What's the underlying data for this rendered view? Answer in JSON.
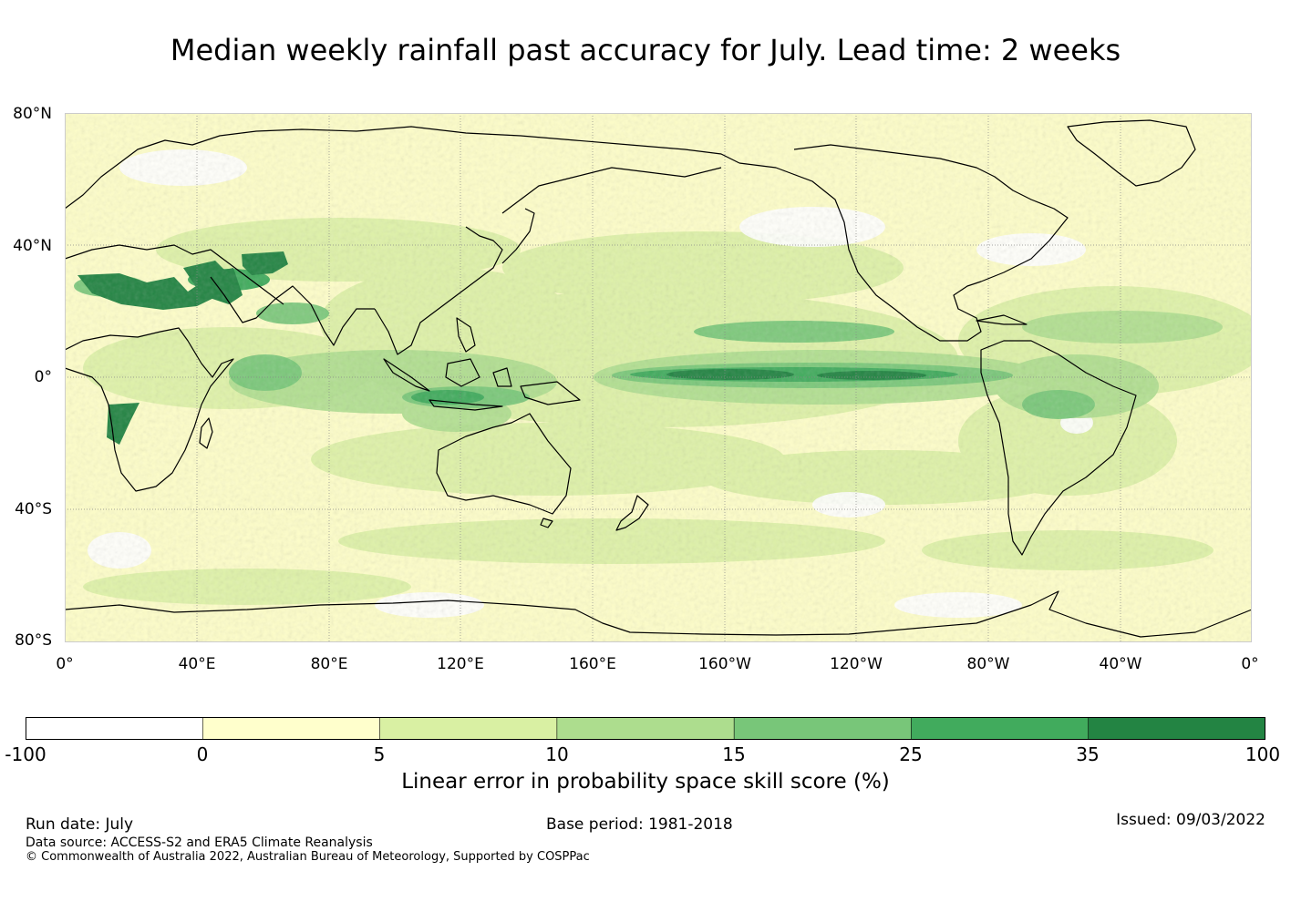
{
  "title": "Median weekly rainfall past accuracy for July. Lead time: 2 weeks",
  "map": {
    "lat_labels": [
      "80°N",
      "40°N",
      "0°",
      "40°S",
      "80°S"
    ],
    "lat_values": [
      80,
      40,
      0,
      -40,
      -80
    ],
    "lon_labels": [
      "0°",
      "40°E",
      "80°E",
      "120°E",
      "160°E",
      "160°W",
      "120°W",
      "80°W",
      "40°W",
      "0°"
    ],
    "lon_values": [
      0,
      40,
      80,
      120,
      160,
      200,
      240,
      280,
      320,
      360
    ]
  },
  "colorbar": {
    "ticks": [
      "-100",
      "0",
      "5",
      "10",
      "15",
      "25",
      "35",
      "100"
    ],
    "colors": [
      "#ffffff",
      "#ffffcc",
      "#d9f0a3",
      "#addd8e",
      "#78c679",
      "#41ab5d",
      "#238443"
    ],
    "label": "Linear error in probability space skill score (%)"
  },
  "footer": {
    "run_date": "Run date: July",
    "base_period": "Base period: 1981-2018",
    "issued": "Issued: 09/03/2022",
    "data_source": "Data source: ACCESS-S2 and ERA5 Climate Reanalysis",
    "copyright": "© Commonwealth of Australia 2022, Australian Bureau of Meteorology, Supported by COSPPac"
  }
}
